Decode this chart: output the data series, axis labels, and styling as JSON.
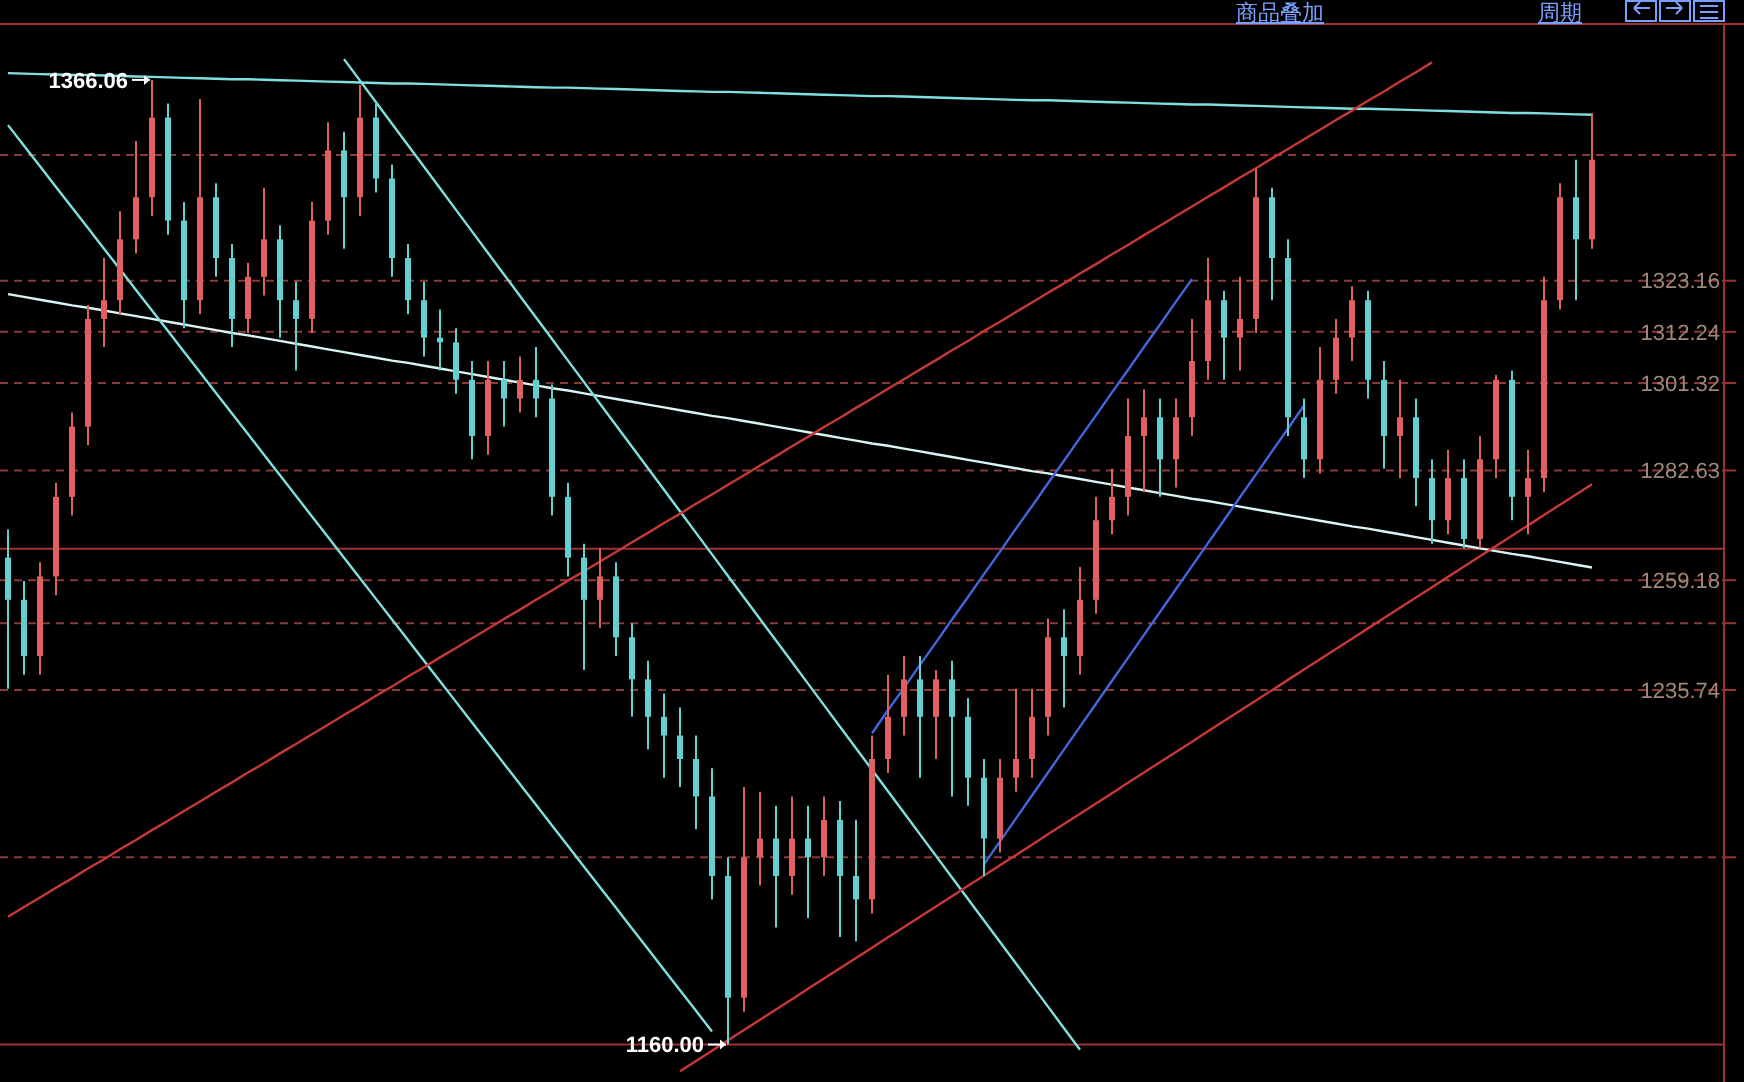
{
  "chart_data": {
    "type": "candlestick",
    "ylim": [
      1152,
      1378
    ],
    "yticks": [
      {
        "value": 1350,
        "label": null
      },
      1323.16,
      1312.24,
      1301.32,
      1282.63,
      1259.18,
      {
        "value": 1250,
        "label": null
      },
      1235.74,
      {
        "value": 1200,
        "label": null
      }
    ],
    "tick_labels": "y",
    "grid": "y",
    "ref_lines": [
      {
        "axis": "y",
        "value": 1265.9,
        "color": "#a03030"
      },
      {
        "axis": "y",
        "value": 1160,
        "color": "#a03030"
      }
    ],
    "annotations": [
      "商品叠加",
      "周期",
      {
        "text": "1366.06",
        "y": 1366.06
      },
      {
        "text": "1160.00",
        "y": 1160
      }
    ],
    "categories": [
      null,
      null,
      null,
      null,
      null,
      null,
      null,
      null,
      null,
      null,
      null,
      null,
      null,
      null,
      null,
      null,
      null,
      null,
      null,
      null,
      null,
      null,
      null,
      null,
      null,
      null,
      null,
      null,
      null,
      null,
      null,
      null,
      null,
      null,
      null,
      null,
      null,
      null,
      null,
      null,
      null,
      null,
      null,
      null,
      null,
      null,
      null,
      null,
      null,
      null,
      null,
      null,
      null,
      null,
      null,
      null,
      null,
      null,
      null,
      null,
      null,
      null,
      null,
      null,
      null,
      null,
      null,
      null,
      null,
      null,
      null,
      null,
      null,
      null,
      null,
      null,
      null,
      null,
      null,
      null,
      null,
      null,
      null,
      null,
      null,
      null,
      null,
      null,
      null,
      null,
      null,
      null,
      null,
      null,
      null,
      null,
      null,
      null,
      null,
      null
    ],
    "ohlc": [
      [
        1264,
        1270,
        1236,
        1255
      ],
      [
        1255,
        1259,
        1239,
        1243
      ],
      [
        1243,
        1263,
        1239,
        1260
      ],
      [
        1260,
        1280,
        1256,
        1277
      ],
      [
        1277,
        1295,
        1273,
        1292
      ],
      [
        1292,
        1318,
        1288,
        1315
      ],
      [
        1315,
        1328,
        1309,
        1319
      ],
      [
        1319,
        1338,
        1316,
        1332
      ],
      [
        1332,
        1353,
        1329,
        1341
      ],
      [
        1341,
        1366.06,
        1337,
        1358
      ],
      [
        1358,
        1361,
        1333,
        1336
      ],
      [
        1336,
        1340,
        1313,
        1319
      ],
      [
        1319,
        1362,
        1316,
        1341
      ],
      [
        1341,
        1344,
        1324,
        1328
      ],
      [
        1328,
        1331,
        1309,
        1315
      ],
      [
        1315,
        1327,
        1312,
        1324
      ],
      [
        1324,
        1343,
        1320,
        1332
      ],
      [
        1332,
        1335,
        1311,
        1319
      ],
      [
        1319,
        1323,
        1304,
        1315
      ],
      [
        1315,
        1340,
        1312,
        1336
      ],
      [
        1336,
        1357,
        1333,
        1351
      ],
      [
        1351,
        1355,
        1330,
        1341
      ],
      [
        1341,
        1365,
        1337,
        1358
      ],
      [
        1358,
        1361,
        1342,
        1345
      ],
      [
        1345,
        1348,
        1324,
        1328
      ],
      [
        1328,
        1331,
        1316,
        1319
      ],
      [
        1319,
        1323,
        1307,
        1311
      ],
      [
        1311,
        1317,
        1304,
        1310
      ],
      [
        1310,
        1313,
        1299,
        1302
      ],
      [
        1302,
        1306,
        1285,
        1290
      ],
      [
        1290,
        1306,
        1286,
        1302
      ],
      [
        1302,
        1306,
        1292,
        1298
      ],
      [
        1298,
        1307,
        1295,
        1302
      ],
      [
        1302,
        1309,
        1294,
        1298
      ],
      [
        1298,
        1301,
        1273,
        1277
      ],
      [
        1277,
        1280,
        1260,
        1264
      ],
      [
        1264,
        1267,
        1240,
        1255
      ],
      [
        1255,
        1266,
        1249,
        1260
      ],
      [
        1260,
        1263,
        1243,
        1247
      ],
      [
        1247,
        1250,
        1230,
        1238
      ],
      [
        1238,
        1242,
        1223,
        1230
      ],
      [
        1230,
        1235,
        1217,
        1226
      ],
      [
        1226,
        1232,
        1215,
        1221
      ],
      [
        1221,
        1226,
        1206,
        1213
      ],
      [
        1213,
        1219,
        1191,
        1196
      ],
      [
        1196,
        1200,
        1160,
        1170
      ],
      [
        1170,
        1215,
        1167,
        1200
      ],
      [
        1200,
        1214,
        1194,
        1204
      ],
      [
        1204,
        1211,
        1185,
        1196
      ],
      [
        1196,
        1213,
        1192,
        1204
      ],
      [
        1204,
        1211,
        1187,
        1200
      ],
      [
        1200,
        1213,
        1196,
        1208
      ],
      [
        1208,
        1212,
        1183,
        1196
      ],
      [
        1196,
        1208,
        1182,
        1191
      ],
      [
        1191,
        1226,
        1188,
        1221
      ],
      [
        1221,
        1239,
        1218,
        1230
      ],
      [
        1230,
        1243,
        1226,
        1238
      ],
      [
        1238,
        1243,
        1217,
        1230
      ],
      [
        1230,
        1240,
        1221,
        1238
      ],
      [
        1238,
        1242,
        1213,
        1230
      ],
      [
        1230,
        1234,
        1211,
        1217
      ],
      [
        1217,
        1221,
        1196,
        1204
      ],
      [
        1204,
        1221,
        1201,
        1217
      ],
      [
        1217,
        1236,
        1214,
        1221
      ],
      [
        1221,
        1236,
        1217,
        1230
      ],
      [
        1230,
        1251,
        1226,
        1247
      ],
      [
        1247,
        1253,
        1232,
        1243
      ],
      [
        1243,
        1262,
        1239,
        1255
      ],
      [
        1255,
        1277,
        1252,
        1272
      ],
      [
        1272,
        1283,
        1269,
        1277
      ],
      [
        1277,
        1298,
        1273,
        1290
      ],
      [
        1290,
        1300,
        1278,
        1294
      ],
      [
        1294,
        1298,
        1277,
        1285
      ],
      [
        1285,
        1298,
        1279,
        1294
      ],
      [
        1294,
        1315,
        1290,
        1306
      ],
      [
        1306,
        1328,
        1302,
        1319
      ],
      [
        1319,
        1321,
        1302,
        1311
      ],
      [
        1311,
        1324,
        1304,
        1315
      ],
      [
        1315,
        1347,
        1312,
        1341
      ],
      [
        1341,
        1343,
        1319,
        1328
      ],
      [
        1328,
        1332,
        1290,
        1294
      ],
      [
        1294,
        1298,
        1281,
        1285
      ],
      [
        1285,
        1309,
        1282,
        1302
      ],
      [
        1302,
        1315,
        1299,
        1311
      ],
      [
        1311,
        1322,
        1306,
        1319
      ],
      [
        1319,
        1321,
        1298,
        1302
      ],
      [
        1302,
        1306,
        1283,
        1290
      ],
      [
        1290,
        1302,
        1281,
        1294
      ],
      [
        1294,
        1298,
        1275,
        1281
      ],
      [
        1281,
        1285,
        1267,
        1272
      ],
      [
        1272,
        1287,
        1269,
        1281
      ],
      [
        1281,
        1285,
        1266,
        1268
      ],
      [
        1268,
        1290,
        1266,
        1285
      ],
      [
        1285,
        1303,
        1281,
        1302
      ],
      [
        1302,
        1304,
        1272,
        1277
      ],
      [
        1277,
        1287,
        1269,
        1281
      ],
      [
        1281,
        1324,
        1278,
        1319
      ],
      [
        1319,
        1344,
        1317,
        1341
      ],
      [
        1341,
        1349,
        1319,
        1332
      ],
      [
        1332,
        1359,
        1330,
        1349
      ]
    ],
    "colors": [
      "#60d0d0",
      "#60d0d0",
      "#e06060",
      "#e06060",
      "#e06060",
      "#e06060",
      "#e06060",
      "#e06060",
      "#e06060",
      "#e06060",
      "#60d0d0",
      "#60d0d0",
      "#e06060",
      "#60d0d0",
      "#60d0d0",
      "#e06060",
      "#e06060",
      "#60d0d0",
      "#60d0d0",
      "#e06060",
      "#e06060",
      "#60d0d0",
      "#e06060",
      "#60d0d0",
      "#60d0d0",
      "#60d0d0",
      "#60d0d0",
      "#60d0d0",
      "#60d0d0",
      "#60d0d0",
      "#e06060",
      "#60d0d0",
      "#e06060",
      "#60d0d0",
      "#60d0d0",
      "#60d0d0",
      "#60d0d0",
      "#e06060",
      "#60d0d0",
      "#60d0d0",
      "#60d0d0",
      "#60d0d0",
      "#60d0d0",
      "#60d0d0",
      "#60d0d0",
      "#60d0d0",
      "#e06060",
      "#e06060",
      "#60d0d0",
      "#e06060",
      "#60d0d0",
      "#e06060",
      "#60d0d0",
      "#60d0d0",
      "#e06060",
      "#e06060",
      "#e06060",
      "#60d0d0",
      "#e06060",
      "#60d0d0",
      "#60d0d0",
      "#60d0d0",
      "#e06060",
      "#e06060",
      "#e06060",
      "#e06060",
      "#60d0d0",
      "#e06060",
      "#e06060",
      "#e06060",
      "#e06060",
      "#e06060",
      "#60d0d0",
      "#e06060",
      "#e06060",
      "#e06060",
      "#60d0d0",
      "#e06060",
      "#e06060",
      "#60d0d0",
      "#60d0d0",
      "#60d0d0",
      "#e06060",
      "#e06060",
      "#e06060",
      "#60d0d0",
      "#60d0d0",
      "#e06060",
      "#60d0d0",
      "#60d0d0",
      "#e06060",
      "#60d0d0",
      "#e06060",
      "#e06060",
      "#60d0d0",
      "#e06060",
      "#e06060",
      "#e06060",
      "#60d0d0",
      "#e06060"
    ],
    "series": [
      {
        "type": "line",
        "color": "#80e0e0",
        "values": [
          1367.5,
          1367.4,
          1367.3,
          1367.2,
          1367.1,
          1367.1,
          1367.0,
          1366.9,
          1366.8,
          1366.7,
          1366.6,
          1366.5,
          1366.4,
          1366.3,
          1366.2,
          1366.2,
          1366.1,
          1366.0,
          1365.9,
          1365.8,
          1365.7,
          1365.6,
          1365.5,
          1365.4,
          1365.3,
          1365.3,
          1365.2,
          1365.1,
          1365.0,
          1364.9,
          1364.8,
          1364.7,
          1364.6,
          1364.5,
          1364.4,
          1364.4,
          1364.3,
          1364.2,
          1364.1,
          1364.0,
          1363.9,
          1363.8,
          1363.7,
          1363.6,
          1363.5,
          1363.5,
          1363.4,
          1363.3,
          1363.2,
          1363.1,
          1363.0,
          1362.9,
          1362.8,
          1362.7,
          1362.6,
          1362.6,
          1362.5,
          1362.4,
          1362.3,
          1362.2,
          1362.1,
          1362.0,
          1361.9,
          1361.8,
          1361.7,
          1361.7,
          1361.6,
          1361.5,
          1361.4,
          1361.3,
          1361.2,
          1361.1,
          1361.0,
          1360.9,
          1360.8,
          1360.8,
          1360.7,
          1360.6,
          1360.5,
          1360.4,
          1360.3,
          1360.2,
          1360.1,
          1360.0,
          1359.9,
          1359.9,
          1359.8,
          1359.7,
          1359.6,
          1359.5,
          1359.4,
          1359.3,
          1359.2,
          1359.1,
          1359.0,
          1359.0,
          1358.9,
          1358.8,
          1358.7,
          1358.6
        ]
      },
      {
        "type": "line",
        "color": "#d8f4f4",
        "values": [
          1320.3,
          1319.7,
          1319.1,
          1318.5,
          1317.9,
          1317.4,
          1316.8,
          1316.2,
          1315.6,
          1315.0,
          1314.4,
          1313.8,
          1313.2,
          1312.6,
          1312.0,
          1311.5,
          1310.9,
          1310.3,
          1309.7,
          1309.1,
          1308.5,
          1307.9,
          1307.3,
          1306.7,
          1306.1,
          1305.6,
          1305.0,
          1304.4,
          1303.8,
          1303.2,
          1302.6,
          1302.0,
          1301.4,
          1300.8,
          1300.2,
          1299.7,
          1299.1,
          1298.5,
          1297.9,
          1297.3,
          1296.7,
          1296.1,
          1295.5,
          1294.9,
          1294.3,
          1293.8,
          1293.2,
          1292.6,
          1292.0,
          1291.4,
          1290.8,
          1290.2,
          1289.6,
          1289.0,
          1288.4,
          1287.9,
          1287.3,
          1286.7,
          1286.1,
          1285.5,
          1284.9,
          1284.3,
          1283.7,
          1283.1,
          1282.5,
          1282.0,
          1281.4,
          1280.8,
          1280.2,
          1279.6,
          1279.0,
          1278.4,
          1277.8,
          1277.2,
          1276.6,
          1276.1,
          1275.5,
          1274.9,
          1274.3,
          1273.7,
          1273.1,
          1272.5,
          1271.9,
          1271.3,
          1270.7,
          1270.2,
          1269.6,
          1269.0,
          1268.4,
          1267.8,
          1267.2,
          1266.6,
          1266.0,
          1265.4,
          1264.8,
          1264.3,
          1263.7,
          1263.1,
          1262.5,
          1261.9
        ]
      },
      {
        "type": "line",
        "color": "#80e0e0",
        "values": [
          1356.4,
          1352.0,
          1347.6,
          1343.2,
          1338.8,
          1334.4,
          1330.0,
          1325.6,
          1321.2,
          1316.8,
          1312.4,
          1308.0,
          1303.6,
          1299.2,
          1294.8,
          1290.4,
          1286.0,
          1281.6,
          1277.2,
          1272.8,
          1268.4,
          1264.0,
          1259.6,
          1255.2,
          1250.8,
          1246.4,
          1242.0,
          1237.6,
          1233.2,
          1228.8,
          1224.4,
          1220.0,
          1215.6,
          1211.2,
          1206.8,
          1202.4,
          1198.0,
          1193.6,
          1189.2,
          1184.8,
          1180.4,
          1176.0,
          1171.6,
          1167.2,
          1162.8,
          null,
          null,
          null,
          null,
          null,
          null,
          null,
          null,
          null,
          null,
          null,
          null,
          null,
          null,
          null,
          null,
          null,
          null,
          null,
          null,
          null,
          null,
          null,
          null,
          null,
          null,
          null,
          null,
          null,
          null,
          null,
          null,
          null,
          null,
          null,
          null,
          null,
          null,
          null,
          null,
          null,
          null,
          null,
          null,
          null,
          null,
          null,
          null,
          null,
          null,
          null,
          null,
          null,
          null,
          null
        ]
      },
      {
        "type": "line",
        "color": "#80e0e0",
        "values": [
          null,
          null,
          null,
          null,
          null,
          null,
          null,
          null,
          null,
          null,
          null,
          null,
          null,
          null,
          null,
          null,
          null,
          null,
          null,
          null,
          null,
          1370.5,
          1365.9,
          1361.3,
          1356.7,
          1352.1,
          1347.5,
          1342.9,
          1338.3,
          1333.7,
          1329.1,
          1324.5,
          1319.9,
          1315.3,
          1310.7,
          1306.1,
          1301.5,
          1296.9,
          1292.3,
          1287.7,
          1283.1,
          1278.5,
          1273.9,
          1269.3,
          1264.7,
          1260.1,
          1255.5,
          1250.9,
          1246.3,
          1241.7,
          1237.1,
          1232.5,
          1227.9,
          1223.3,
          1218.7,
          1214.1,
          1209.5,
          1204.9,
          1200.3,
          1195.7,
          1191.1,
          1186.5,
          1181.9,
          1177.3,
          1172.7,
          1168.1,
          1163.5,
          1158.9,
          null,
          null,
          null,
          null,
          null,
          null,
          null,
          null,
          null,
          null,
          null,
          null,
          null,
          null,
          null,
          null,
          null,
          null,
          null,
          null,
          null,
          null,
          null,
          null,
          null,
          null,
          null,
          null,
          null,
          null,
          null,
          null
        ]
      },
      {
        "type": "line",
        "color": "#c83838",
        "values": [
          1187.3,
          1189.4,
          1191.4,
          1193.5,
          1195.5,
          1197.6,
          1199.6,
          1201.7,
          1203.7,
          1205.8,
          1207.8,
          1209.9,
          1211.9,
          1214.0,
          1216.0,
          1218.1,
          1220.1,
          1222.2,
          1224.2,
          1226.3,
          1228.3,
          1230.4,
          1232.4,
          1234.5,
          1236.5,
          1238.6,
          1240.6,
          1242.7,
          1244.7,
          1246.8,
          1248.8,
          1250.9,
          1252.9,
          1255.0,
          1257.0,
          1259.1,
          1261.1,
          1263.2,
          1265.2,
          1267.3,
          1269.3,
          1271.4,
          1273.4,
          1275.5,
          1277.5,
          1279.6,
          1281.6,
          1283.7,
          1285.7,
          1287.8,
          1289.8,
          1291.9,
          1293.9,
          1296.0,
          1298.0,
          1300.1,
          1302.1,
          1304.2,
          1306.2,
          1308.3,
          1310.3,
          1312.4,
          1314.4,
          1316.5,
          1318.5,
          1320.6,
          1322.6,
          1324.7,
          1326.7,
          1328.8,
          1330.8,
          1332.9,
          1334.9,
          1337.0,
          1339.0,
          1341.1,
          1343.1,
          1345.2,
          1347.2,
          1349.3,
          1351.3,
          1353.4,
          1355.4,
          1357.5,
          1359.5,
          1361.6,
          1363.6,
          1365.7,
          1367.7,
          1369.8,
          null,
          null,
          null,
          null,
          null,
          null,
          null,
          null,
          null,
          null
        ]
      },
      {
        "type": "line",
        "color": "#c83838",
        "values": [
          null,
          null,
          null,
          null,
          null,
          null,
          null,
          null,
          null,
          null,
          null,
          null,
          null,
          null,
          null,
          null,
          null,
          null,
          null,
          null,
          null,
          null,
          null,
          null,
          null,
          null,
          null,
          null,
          null,
          null,
          null,
          null,
          null,
          null,
          null,
          null,
          null,
          null,
          null,
          null,
          null,
          null,
          1154.3,
          1156.5,
          1158.7,
          1160.9,
          1163.1,
          1165.3,
          1167.5,
          1169.7,
          1171.9,
          1174.1,
          1176.3,
          1178.5,
          1180.7,
          1182.9,
          1185.1,
          1187.3,
          1189.5,
          1191.7,
          1193.9,
          1196.1,
          1198.3,
          1200.5,
          1202.7,
          1204.9,
          1207.1,
          1209.3,
          1211.5,
          1213.7,
          1215.9,
          1218.1,
          1220.3,
          1222.5,
          1224.7,
          1226.9,
          1229.1,
          1231.3,
          1233.5,
          1235.7,
          1237.9,
          1240.1,
          1242.3,
          1244.5,
          1246.7,
          1248.9,
          1251.1,
          1253.3,
          1255.5,
          1257.7,
          1259.9,
          1262.1,
          1264.3,
          1266.5,
          1268.7,
          1270.9,
          1273.1,
          1275.3,
          1277.5,
          1279.7
        ]
      },
      {
        "type": "line",
        "color": "#4466dd",
        "values": [
          null,
          null,
          null,
          null,
          null,
          null,
          null,
          null,
          null,
          null,
          null,
          null,
          null,
          null,
          null,
          null,
          null,
          null,
          null,
          null,
          null,
          null,
          null,
          null,
          null,
          null,
          null,
          null,
          null,
          null,
          null,
          null,
          null,
          null,
          null,
          null,
          null,
          null,
          null,
          null,
          null,
          null,
          null,
          null,
          null,
          null,
          null,
          null,
          null,
          null,
          null,
          null,
          null,
          null,
          1226.5,
          1231.4,
          1236.2,
          1241.1,
          1245.9,
          1250.8,
          1255.6,
          1260.5,
          1265.3,
          1270.2,
          1275.0,
          1279.9,
          1284.7,
          1289.6,
          1294.4,
          1299.3,
          1304.1,
          1309.0,
          1313.8,
          1318.7,
          1323.5,
          null,
          null,
          null,
          null,
          null,
          null,
          null,
          null,
          null,
          null,
          null,
          null,
          null,
          null,
          null,
          null,
          null,
          null,
          null,
          null,
          null,
          null,
          null,
          null,
          null
        ]
      },
      {
        "type": "line",
        "color": "#4466dd",
        "values": [
          null,
          null,
          null,
          null,
          null,
          null,
          null,
          null,
          null,
          null,
          null,
          null,
          null,
          null,
          null,
          null,
          null,
          null,
          null,
          null,
          null,
          null,
          null,
          null,
          null,
          null,
          null,
          null,
          null,
          null,
          null,
          null,
          null,
          null,
          null,
          null,
          null,
          null,
          null,
          null,
          null,
          null,
          null,
          null,
          null,
          null,
          null,
          null,
          null,
          null,
          null,
          null,
          null,
          null,
          null,
          null,
          null,
          null,
          null,
          null,
          null,
          1198.5,
          1203.4,
          1208.3,
          1213.2,
          1218.1,
          1223.0,
          1227.9,
          1232.8,
          1237.7,
          1242.6,
          1247.5,
          1252.4,
          1257.3,
          1262.2,
          1267.1,
          1272.0,
          1276.9,
          1281.8,
          1286.7,
          1291.6,
          1296.5,
          null,
          null,
          null,
          null,
          null,
          null,
          null,
          null,
          null,
          null,
          null,
          null,
          null,
          null,
          null,
          null,
          null,
          null
        ]
      }
    ]
  }
}
